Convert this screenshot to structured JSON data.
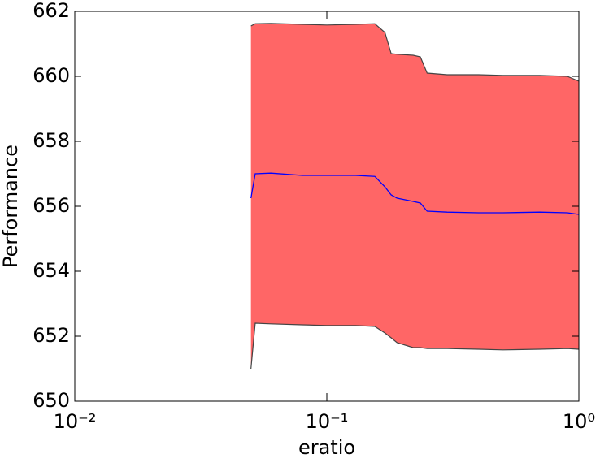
{
  "chart_data": {
    "type": "band-line",
    "xlabel": "eratio",
    "ylabel": "Performance",
    "x": [
      0.05,
      0.052,
      0.06,
      0.08,
      0.1,
      0.13,
      0.155,
      0.17,
      0.18,
      0.19,
      0.22,
      0.235,
      0.25,
      0.3,
      0.4,
      0.5,
      0.7,
      0.9,
      1.0
    ],
    "series": [
      {
        "color": "blue",
        "values": [
          656.25,
          657.0,
          657.02,
          656.95,
          656.95,
          656.95,
          656.92,
          656.6,
          656.35,
          656.25,
          656.15,
          656.1,
          655.85,
          655.82,
          655.8,
          655.8,
          655.82,
          655.8,
          655.75
        ]
      }
    ],
    "band": {
      "color": "#ff6666",
      "edge_color": "#444444",
      "upper": [
        661.55,
        661.62,
        661.63,
        661.6,
        661.58,
        661.6,
        661.62,
        661.35,
        660.7,
        660.68,
        660.65,
        660.6,
        660.1,
        660.05,
        660.05,
        660.03,
        660.03,
        660.0,
        659.85
      ],
      "lower": [
        651.0,
        652.4,
        652.38,
        652.35,
        652.33,
        652.33,
        652.3,
        652.1,
        651.95,
        651.8,
        651.65,
        651.65,
        651.62,
        651.62,
        651.6,
        651.58,
        651.6,
        651.62,
        651.6
      ]
    },
    "xscale": "log",
    "xlim": [
      0.01,
      1
    ],
    "ylim": [
      650,
      662
    ],
    "xticks": [
      {
        "value": 0.01,
        "label": "10⁻²"
      },
      {
        "value": 0.1,
        "label": "10⁻¹"
      },
      {
        "value": 1,
        "label": "10⁰"
      }
    ],
    "yticks": [
      650,
      652,
      654,
      656,
      658,
      660,
      662
    ]
  }
}
